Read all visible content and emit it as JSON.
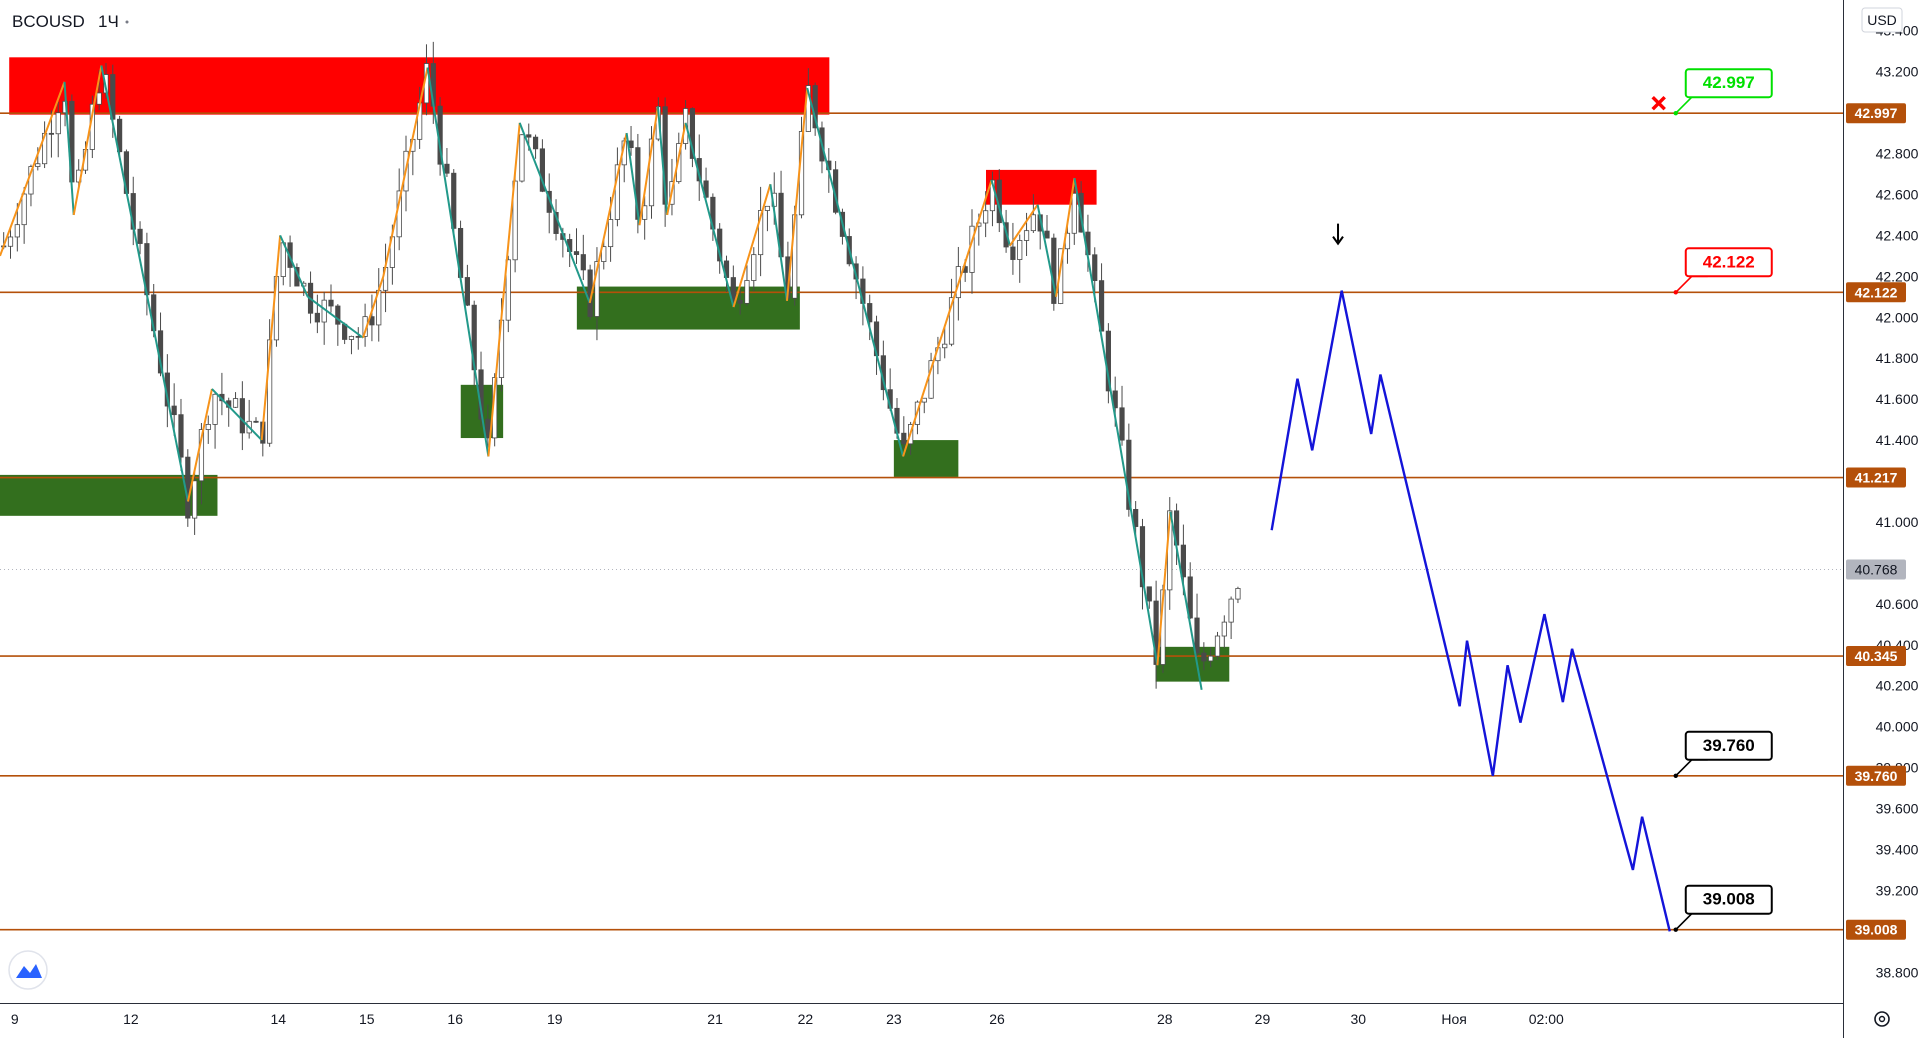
{
  "header": {
    "symbol": "BCOUSD",
    "interval": "1Ч",
    "currency": "USD"
  },
  "chart_data": {
    "type": "candlestick",
    "ylim": [
      38.65,
      43.55
    ],
    "y_ticks": [
      43.4,
      43.2,
      43.0,
      42.8,
      42.6,
      42.4,
      42.2,
      42.0,
      41.8,
      41.6,
      41.4,
      41.2,
      41.0,
      40.8,
      40.6,
      40.4,
      40.2,
      40.0,
      39.8,
      39.6,
      39.4,
      39.2,
      39.0,
      38.8
    ],
    "y_tick_labels": [
      "43.400",
      "43.200",
      "",
      "42.800",
      "42.600",
      "42.400",
      "42.200",
      "42.000",
      "41.800",
      "41.600",
      "41.400",
      "",
      "41.000",
      "",
      "40.600",
      "40.400",
      "40.200",
      "40.000",
      "39.800",
      "39.600",
      "39.400",
      "39.200",
      "",
      "38.800"
    ],
    "x_ticks": [
      "9",
      "12",
      "14",
      "15",
      "16",
      "19",
      "21",
      "22",
      "23",
      "26",
      "28",
      "29",
      "30",
      "Ноя",
      "02:00"
    ],
    "current_price": {
      "value": 40.768,
      "label": "40.768",
      "color": "#b2b5be"
    },
    "levels": [
      {
        "value": 42.997,
        "label": "42.997",
        "color": "#b4500a"
      },
      {
        "value": 42.122,
        "label": "42.122",
        "color": "#b4500a"
      },
      {
        "value": 41.217,
        "label": "41.217",
        "color": "#b4500a"
      },
      {
        "value": 40.345,
        "label": "40.345",
        "color": "#b4500a"
      },
      {
        "value": 39.76,
        "label": "39.760",
        "color": "#b4500a"
      },
      {
        "value": 39.008,
        "label": "39.008",
        "color": "#b4500a"
      }
    ],
    "zones": [
      {
        "kind": "supply",
        "color": "#ff0000",
        "x0": 0.005,
        "x1": 0.45,
        "y0": 43.27,
        "y1": 42.99
      },
      {
        "kind": "supply",
        "color": "#ff0000",
        "x0": 0.535,
        "x1": 0.595,
        "y0": 42.72,
        "y1": 42.55
      },
      {
        "kind": "demand",
        "color": "#336f1e",
        "x0": 0.0,
        "x1": 0.118,
        "y0": 41.23,
        "y1": 41.03
      },
      {
        "kind": "demand",
        "color": "#336f1e",
        "x0": 0.25,
        "x1": 0.273,
        "y0": 41.67,
        "y1": 41.41
      },
      {
        "kind": "demand",
        "color": "#336f1e",
        "x0": 0.313,
        "x1": 0.434,
        "y0": 42.15,
        "y1": 41.94
      },
      {
        "kind": "demand",
        "color": "#336f1e",
        "x0": 0.485,
        "x1": 0.52,
        "y0": 41.4,
        "y1": 41.22
      },
      {
        "kind": "demand",
        "color": "#336f1e",
        "x0": 0.627,
        "x1": 0.667,
        "y0": 40.39,
        "y1": 40.22
      }
    ],
    "zigzag": [
      {
        "x": 0.0,
        "y": 42.3
      },
      {
        "x": 0.035,
        "y": 43.15
      },
      {
        "x": 0.04,
        "y": 42.5
      },
      {
        "x": 0.055,
        "y": 43.23
      },
      {
        "x": 0.102,
        "y": 41.1
      },
      {
        "x": 0.115,
        "y": 41.65
      },
      {
        "x": 0.142,
        "y": 41.4
      },
      {
        "x": 0.152,
        "y": 42.4
      },
      {
        "x": 0.167,
        "y": 42.1
      },
      {
        "x": 0.197,
        "y": 41.9
      },
      {
        "x": 0.208,
        "y": 42.2
      },
      {
        "x": 0.232,
        "y": 43.22
      },
      {
        "x": 0.265,
        "y": 41.32
      },
      {
        "x": 0.282,
        "y": 42.95
      },
      {
        "x": 0.32,
        "y": 42.07
      },
      {
        "x": 0.34,
        "y": 42.9
      },
      {
        "x": 0.347,
        "y": 42.45
      },
      {
        "x": 0.357,
        "y": 43.03
      },
      {
        "x": 0.362,
        "y": 42.5
      },
      {
        "x": 0.372,
        "y": 42.95
      },
      {
        "x": 0.398,
        "y": 42.05
      },
      {
        "x": 0.418,
        "y": 42.65
      },
      {
        "x": 0.427,
        "y": 42.08
      },
      {
        "x": 0.438,
        "y": 43.12
      },
      {
        "x": 0.49,
        "y": 41.32
      },
      {
        "x": 0.538,
        "y": 42.67
      },
      {
        "x": 0.548,
        "y": 42.35
      },
      {
        "x": 0.563,
        "y": 42.55
      },
      {
        "x": 0.573,
        "y": 42.1
      },
      {
        "x": 0.583,
        "y": 42.68
      },
      {
        "x": 0.628,
        "y": 40.3
      },
      {
        "x": 0.635,
        "y": 41.05
      },
      {
        "x": 0.652,
        "y": 40.18
      }
    ],
    "projection": [
      {
        "x": 0.69,
        "y": 40.96
      },
      {
        "x": 0.704,
        "y": 41.7
      },
      {
        "x": 0.712,
        "y": 41.35
      },
      {
        "x": 0.728,
        "y": 42.13
      },
      {
        "x": 0.744,
        "y": 41.43
      },
      {
        "x": 0.749,
        "y": 41.72
      },
      {
        "x": 0.792,
        "y": 40.1
      },
      {
        "x": 0.796,
        "y": 40.42
      },
      {
        "x": 0.81,
        "y": 39.76
      },
      {
        "x": 0.818,
        "y": 40.3
      },
      {
        "x": 0.825,
        "y": 40.02
      },
      {
        "x": 0.838,
        "y": 40.55
      },
      {
        "x": 0.848,
        "y": 40.12
      },
      {
        "x": 0.853,
        "y": 40.38
      },
      {
        "x": 0.886,
        "y": 39.3
      },
      {
        "x": 0.891,
        "y": 39.56
      },
      {
        "x": 0.906,
        "y": 39.0
      }
    ],
    "callouts": [
      {
        "label": "42.997",
        "value": 42.997,
        "color": "#00e000",
        "x": 0.906
      },
      {
        "label": "42.122",
        "value": 42.122,
        "color": "#ff0000",
        "x": 0.906
      },
      {
        "label": "39.760",
        "value": 39.76,
        "color": "#000000",
        "x": 0.906
      },
      {
        "label": "39.008",
        "value": 39.008,
        "color": "#000000",
        "x": 0.906
      }
    ],
    "cross_marker": {
      "value": 42.997,
      "x": 0.9,
      "color": "#ff0000"
    },
    "down_arrow": {
      "value": 42.35,
      "x": 0.726,
      "color": "#000000"
    }
  }
}
